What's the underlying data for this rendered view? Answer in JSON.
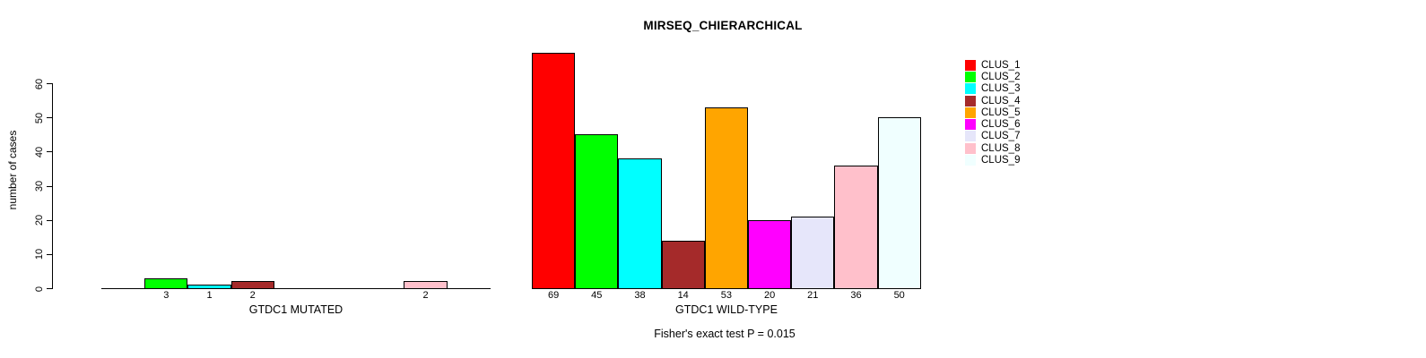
{
  "chart_data": {
    "type": "bar",
    "title": "MIRSEQ_CHIERARCHICAL",
    "ylabel": "number of cases",
    "ylim": [
      0,
      60
    ],
    "yticks": [
      0,
      10,
      20,
      30,
      40,
      50,
      60
    ],
    "grid": false,
    "legend_position": "right",
    "annotation": "Fisher's exact test P = 0.015",
    "categories": [
      "CLUS_1",
      "CLUS_2",
      "CLUS_3",
      "CLUS_4",
      "CLUS_5",
      "CLUS_6",
      "CLUS_7",
      "CLUS_8",
      "CLUS_9"
    ],
    "palette": [
      "#FF0000",
      "#00FF00",
      "#00FFFF",
      "#A52A2A",
      "#FFA500",
      "#FF00FF",
      "#E6E6FA",
      "#FFC0CB",
      "#F0FFFF"
    ],
    "panels": [
      {
        "xlabel": "GTDC1 MUTATED",
        "values": [
          0,
          3,
          1,
          2,
          0,
          0,
          0,
          2,
          0
        ],
        "bar_labels": [
          "",
          "3",
          "1",
          "2",
          "",
          "",
          "",
          "2",
          ""
        ]
      },
      {
        "xlabel": "GTDC1 WILD-TYPE",
        "values": [
          69,
          45,
          38,
          14,
          53,
          20,
          21,
          36,
          50
        ],
        "bar_labels": [
          "69",
          "45",
          "38",
          "14",
          "53",
          "20",
          "21",
          "36",
          "50"
        ]
      }
    ]
  }
}
